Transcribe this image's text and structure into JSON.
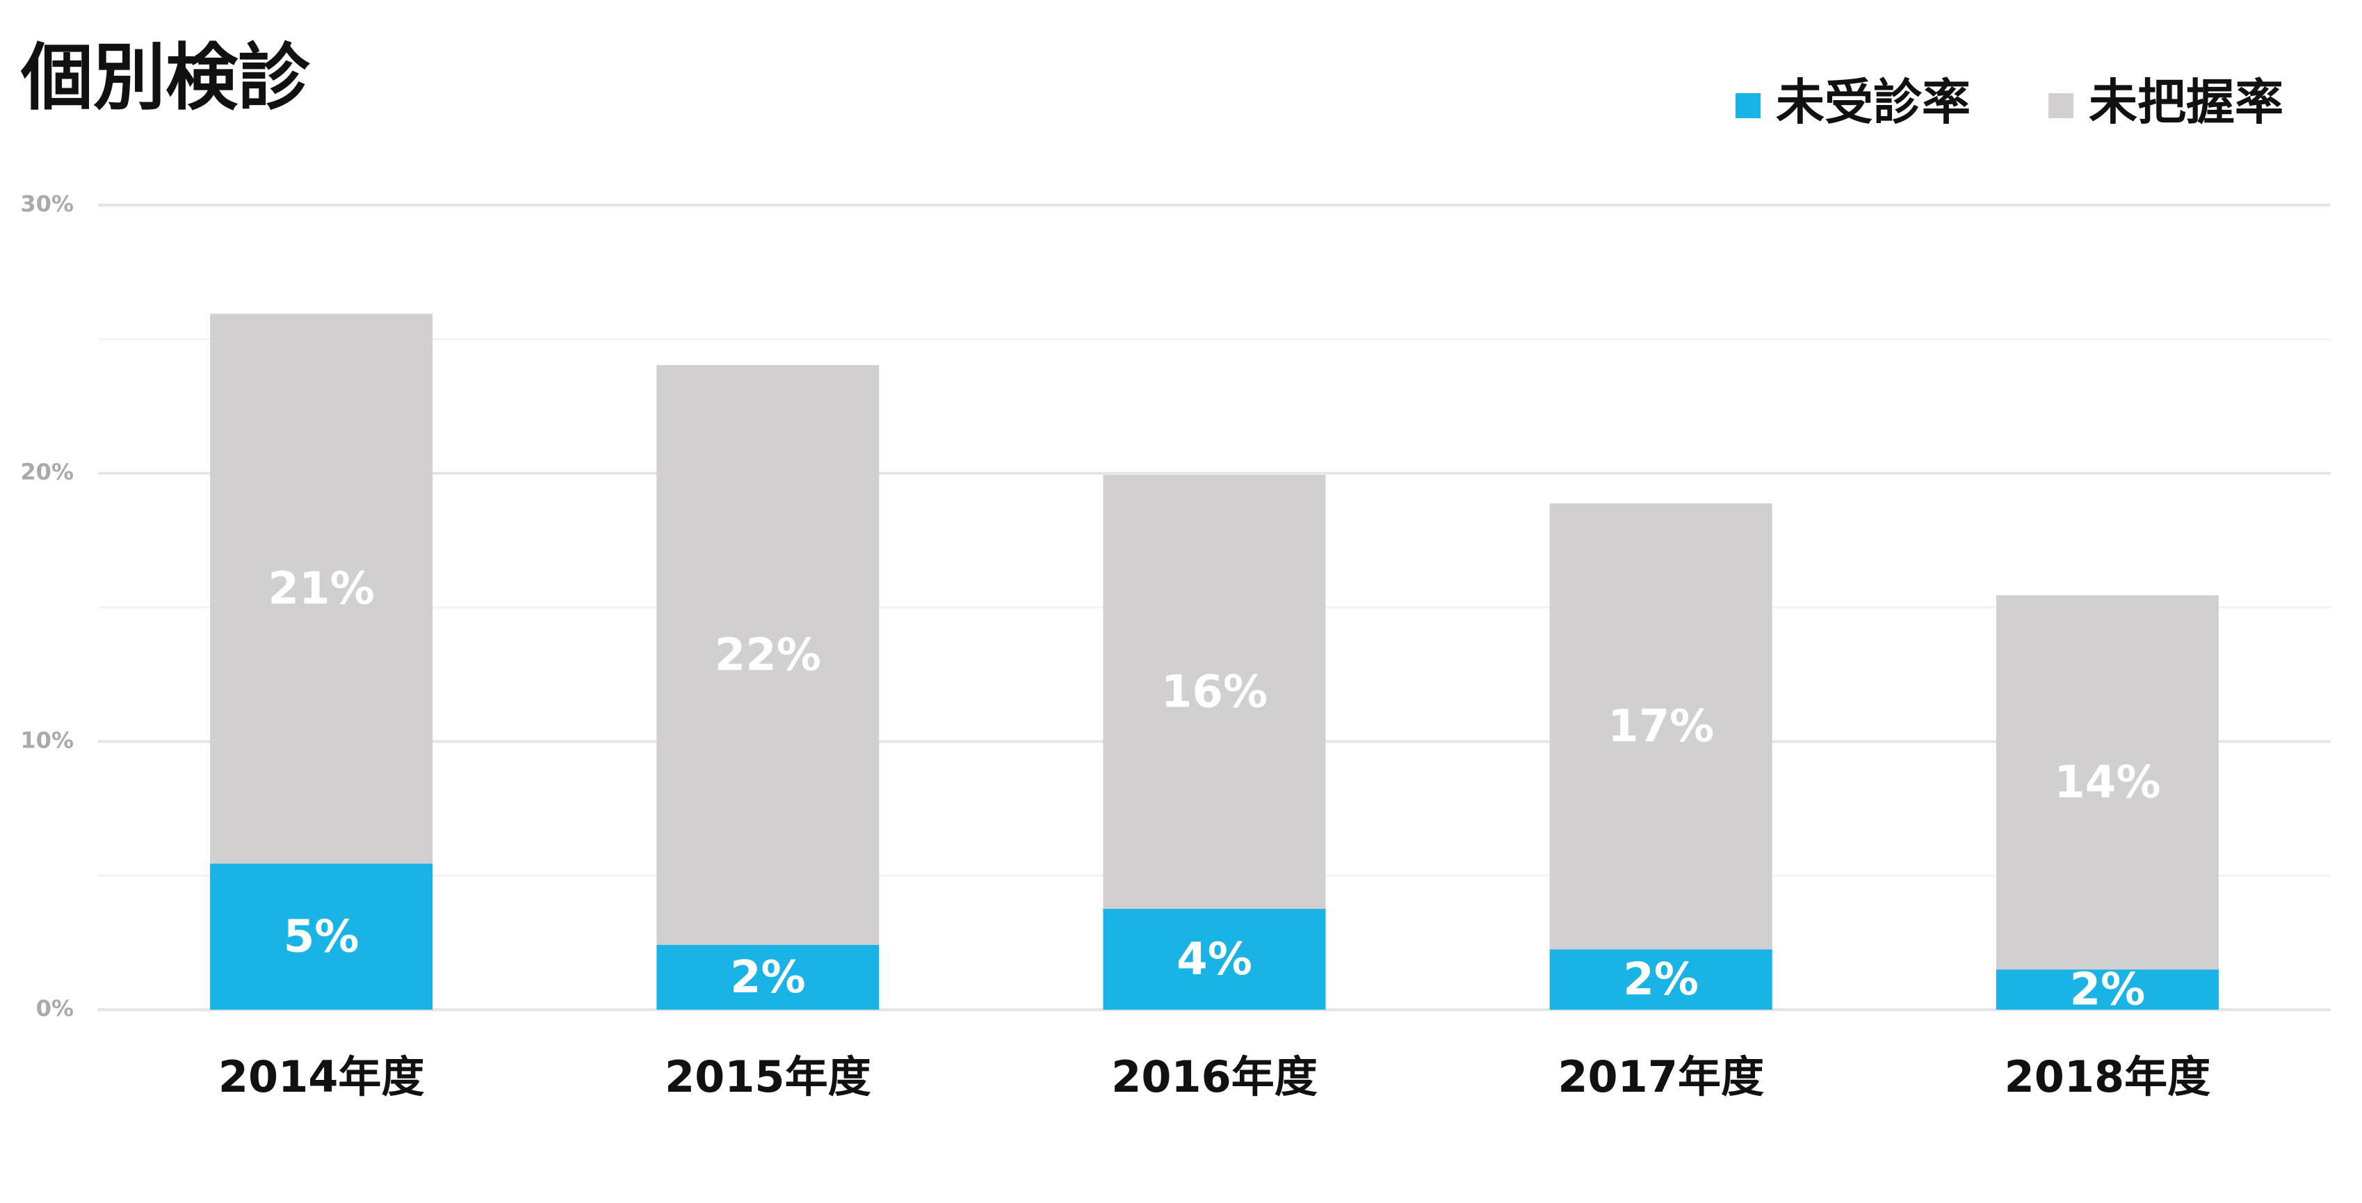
{
  "chart_data": {
    "type": "stacked_bar",
    "title": "個別検診",
    "categories": [
      "2014年度",
      "2015年度",
      "2016年度",
      "2017年度",
      "2018年度"
    ],
    "series": [
      {
        "name": "未受診率",
        "color": "#1ab3e6",
        "values": [
          5.45,
          2.42,
          3.76,
          2.25,
          1.5
        ],
        "value_labels": [
          "5%",
          "2%",
          "4%",
          "2%",
          "2%"
        ]
      },
      {
        "name": "未把握率",
        "color": "#d1cfd0",
        "values": [
          20.5,
          21.62,
          16.18,
          16.63,
          13.95
        ],
        "value_labels": [
          "21%",
          "22%",
          "16%",
          "17%",
          "14%"
        ]
      }
    ],
    "ylim": [
      0,
      30
    ],
    "yticks": [
      {
        "value": 0,
        "label": "0%"
      },
      {
        "value": 10,
        "label": "10%"
      },
      {
        "value": 20,
        "label": "20%"
      },
      {
        "value": 30,
        "label": "30%"
      }
    ],
    "yminor": [
      5,
      15,
      25
    ],
    "grid": true,
    "legend": "top-right"
  }
}
